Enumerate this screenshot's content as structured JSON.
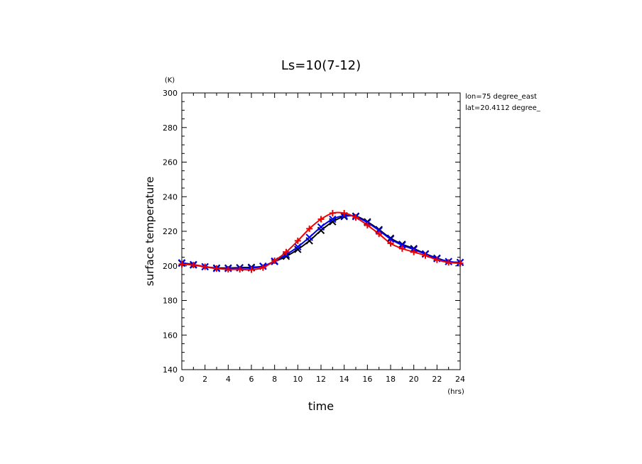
{
  "chart_data": {
    "type": "line",
    "title": "Ls=10(7-12)",
    "xlabel": "time",
    "ylabel": "surface temperature",
    "x_unit": "(hrs)",
    "y_unit": "(K)",
    "xlim": [
      0,
      24
    ],
    "ylim": [
      140,
      300
    ],
    "x_ticks": [
      0,
      2,
      4,
      6,
      8,
      10,
      12,
      14,
      16,
      18,
      20,
      22,
      24
    ],
    "y_ticks": [
      140,
      160,
      180,
      200,
      220,
      240,
      260,
      280,
      300
    ],
    "annotations": [
      "lon=75 degree_east",
      "lat=20.4112 degree_"
    ],
    "grid": false,
    "x": [
      0,
      1,
      2,
      3,
      4,
      5,
      6,
      7,
      8,
      9,
      10,
      11,
      12,
      13,
      14,
      15,
      16,
      17,
      18,
      19,
      20,
      21,
      22,
      23,
      24
    ],
    "series": [
      {
        "color": "#000000",
        "marker": "x",
        "values": [
          201.5,
          200.5,
          199.5,
          198.8,
          198.8,
          199.0,
          199.2,
          199.8,
          202.5,
          205.5,
          209.5,
          214.5,
          220.5,
          225.5,
          228.5,
          228.8,
          225.5,
          221.0,
          216.0,
          212.5,
          210.0,
          207.0,
          204.5,
          202.5,
          202.0
        ]
      },
      {
        "color": "#0000ee",
        "marker": "x",
        "values": [
          201.8,
          200.8,
          199.5,
          198.5,
          198.5,
          198.8,
          198.8,
          199.8,
          202.8,
          206.5,
          211.0,
          216.5,
          222.5,
          227.0,
          229.0,
          228.5,
          225.0,
          220.5,
          215.5,
          212.0,
          209.5,
          206.8,
          204.2,
          202.5,
          202.0
        ]
      },
      {
        "color": "#ee0000",
        "marker": "+",
        "values": [
          201.0,
          200.5,
          199.5,
          198.5,
          198.0,
          198.0,
          197.8,
          199.0,
          203.0,
          208.0,
          214.5,
          221.5,
          227.0,
          230.5,
          230.5,
          228.0,
          223.5,
          218.5,
          213.0,
          210.0,
          208.0,
          206.0,
          203.5,
          202.0,
          201.5
        ]
      }
    ]
  }
}
